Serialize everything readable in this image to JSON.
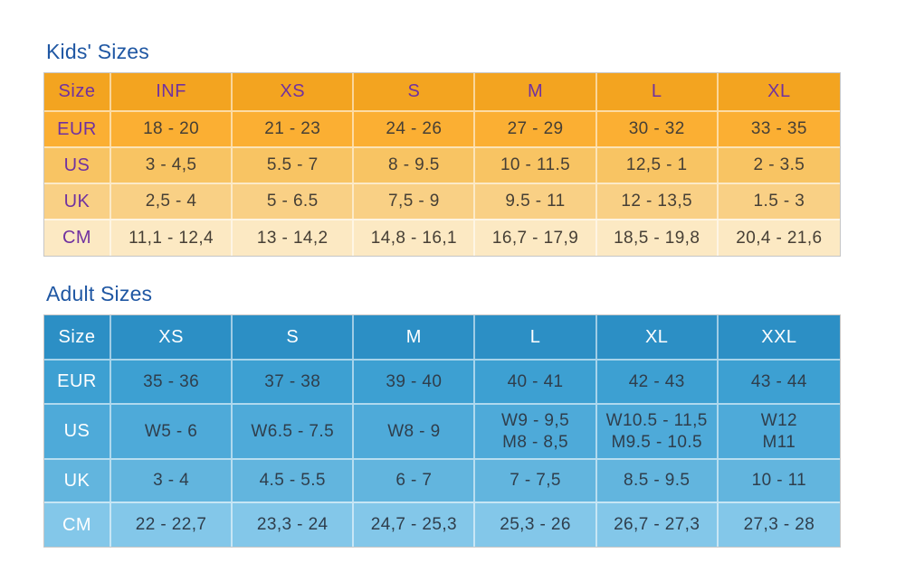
{
  "kids": {
    "title": "Kids' Sizes",
    "theme": {
      "title_text": "#1f57a3",
      "header_bg": "#f3a420",
      "header_text": "#7031a0",
      "label_text": "#7031a0",
      "data_text": "#463f35",
      "row_bgs": [
        "#fbaf33",
        "#f8c463",
        "#f9d085",
        "#fce9c3"
      ]
    },
    "columns": [
      "Size",
      "INF",
      "XS",
      "S",
      "M",
      "L",
      "XL"
    ],
    "rows": [
      {
        "label": "EUR",
        "cells": [
          "18 - 20",
          "21 - 23",
          "24 - 26",
          "27 - 29",
          "30 - 32",
          "33 - 35"
        ]
      },
      {
        "label": "US",
        "cells": [
          "3 - 4,5",
          "5.5 - 7",
          "8 - 9.5",
          "10 - 11.5",
          "12,5 - 1",
          "2 - 3.5"
        ]
      },
      {
        "label": "UK",
        "cells": [
          "2,5 - 4",
          "5 - 6.5",
          "7,5 - 9",
          "9.5 - 11",
          "12 - 13,5",
          "1.5 - 3"
        ]
      },
      {
        "label": "CM",
        "cells": [
          "11,1 - 12,4",
          "13 - 14,2",
          "14,8 - 16,1",
          "16,7 - 17,9",
          "18,5 - 19,8",
          "20,4 - 21,6"
        ]
      }
    ]
  },
  "adult": {
    "title": "Adult Sizes",
    "theme": {
      "title_text": "#1f57a3",
      "header_bg": "#2c8fc5",
      "header_text": "#ffffff",
      "label_text": "#ffffff",
      "data_text": "#2f3e4c",
      "row_bgs": [
        "#3da0d2",
        "#4eaad9",
        "#62b5de",
        "#83c7e9"
      ]
    },
    "columns": [
      "Size",
      "XS",
      "S",
      "M",
      "L",
      "XL",
      "XXL"
    ],
    "rows": [
      {
        "label": "EUR",
        "cells": [
          "35 - 36",
          "37 - 38",
          "39 - 40",
          "40 - 41",
          "42 - 43",
          "43 - 44"
        ]
      },
      {
        "label": "US",
        "cells": [
          "W5 - 6",
          "W6.5 - 7.5",
          "W8 - 9",
          "W9 - 9,5\nM8 - 8,5",
          "W10.5 - 11,5\nM9.5 - 10.5",
          "W12\nM11"
        ]
      },
      {
        "label": "UK",
        "cells": [
          "3 - 4",
          "4.5 - 5.5",
          "6 - 7",
          "7 - 7,5",
          "8.5 - 9.5",
          "10 - 11"
        ]
      },
      {
        "label": "CM",
        "cells": [
          "22 - 22,7",
          "23,3 - 24",
          "24,7 - 25,3",
          "25,3 - 26",
          "26,7 - 27,3",
          "27,3 - 28"
        ]
      }
    ]
  }
}
